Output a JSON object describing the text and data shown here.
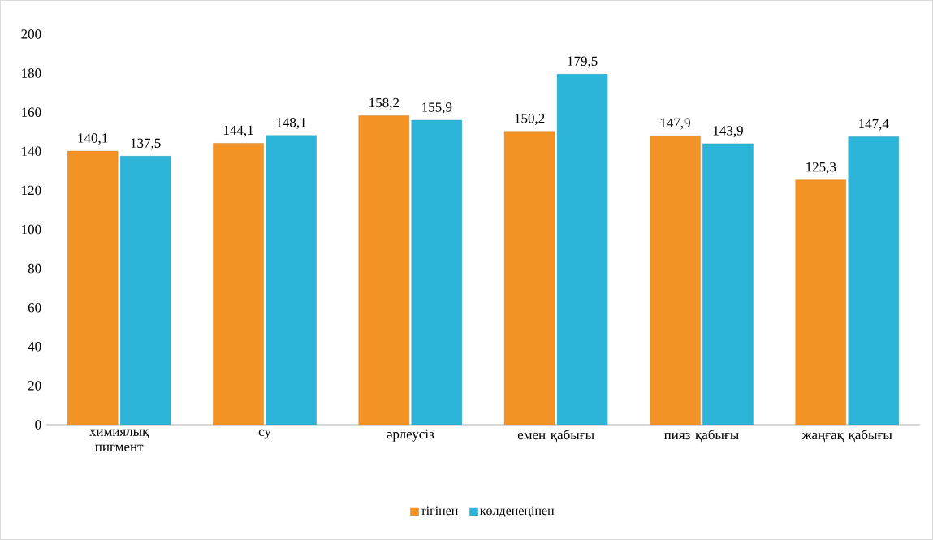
{
  "chart_data": {
    "type": "bar",
    "categories": [
      "химиялық пигмент",
      "су",
      "әрлеусіз",
      "емен қабығы",
      "пияз қабығы",
      "жаңғақ қабығы"
    ],
    "series": [
      {
        "name": "тігінен",
        "color": "#f39325",
        "values": [
          140.1,
          144.1,
          158.2,
          150.2,
          147.9,
          125.3
        ],
        "value_labels": [
          "140,1",
          "144,1",
          "158,2",
          "150,2",
          "147,9",
          "125,3"
        ]
      },
      {
        "name": "көлденеңінен",
        "color": "#2db5d9",
        "values": [
          137.5,
          148.1,
          155.9,
          179.5,
          143.9,
          147.4
        ],
        "value_labels": [
          "137,5",
          "148,1",
          "155,9",
          "179,5",
          "143,9",
          "147,4"
        ]
      }
    ],
    "ylim": [
      0,
      200
    ],
    "yticks": [
      0,
      20,
      40,
      60,
      80,
      100,
      120,
      140,
      160,
      180,
      200
    ],
    "legend": "bottom",
    "grid": false
  }
}
